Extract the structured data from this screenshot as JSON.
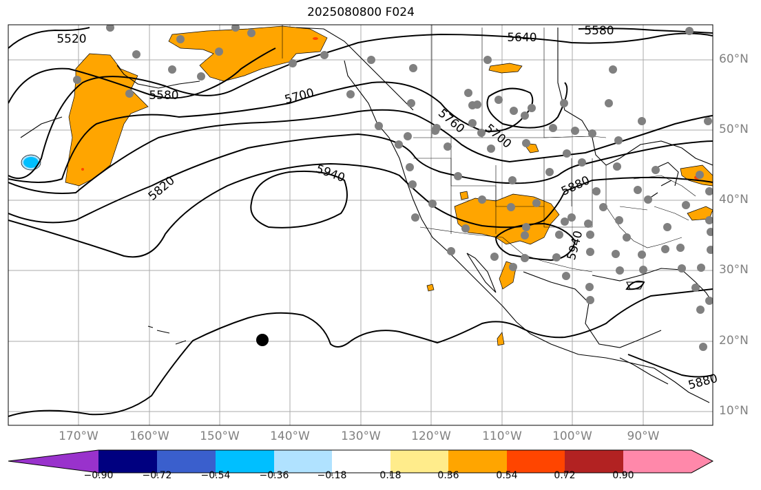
{
  "title": "2025080800 F024",
  "lon_labels": [
    "170°W",
    "160°W",
    "150°W",
    "140°W",
    "130°W",
    "120°W",
    "110°W",
    "100°W",
    "90°W"
  ],
  "lat_labels": [
    "60°N",
    "50°N",
    "40°N",
    "30°N",
    "20°N",
    "10°N"
  ],
  "contour_labels": [
    "5520",
    "5580",
    "5640",
    "5580",
    "5700",
    "5760",
    "5700",
    "5820",
    "5940",
    "5880",
    "5940",
    "5880"
  ],
  "colorbar": {
    "tick_labels": [
      "−0.90",
      "−0.72",
      "−0.54",
      "−0.36",
      "−0.18",
      "0.18",
      "0.36",
      "0.54",
      "0.72",
      "0.90"
    ],
    "colors": [
      "#9932cc",
      "#000080",
      "#3a5fcd",
      "#00bfff",
      "#b0e2ff",
      "#ffffff",
      "#ffec8b",
      "#ffa500",
      "#ff4500",
      "#b22222",
      "#ff88aa"
    ]
  },
  "colors": {
    "positive_fill": "#ffa500",
    "negative_fill": "#00bfff",
    "station_marker": "#808080",
    "feature_marker": "#000000"
  }
}
